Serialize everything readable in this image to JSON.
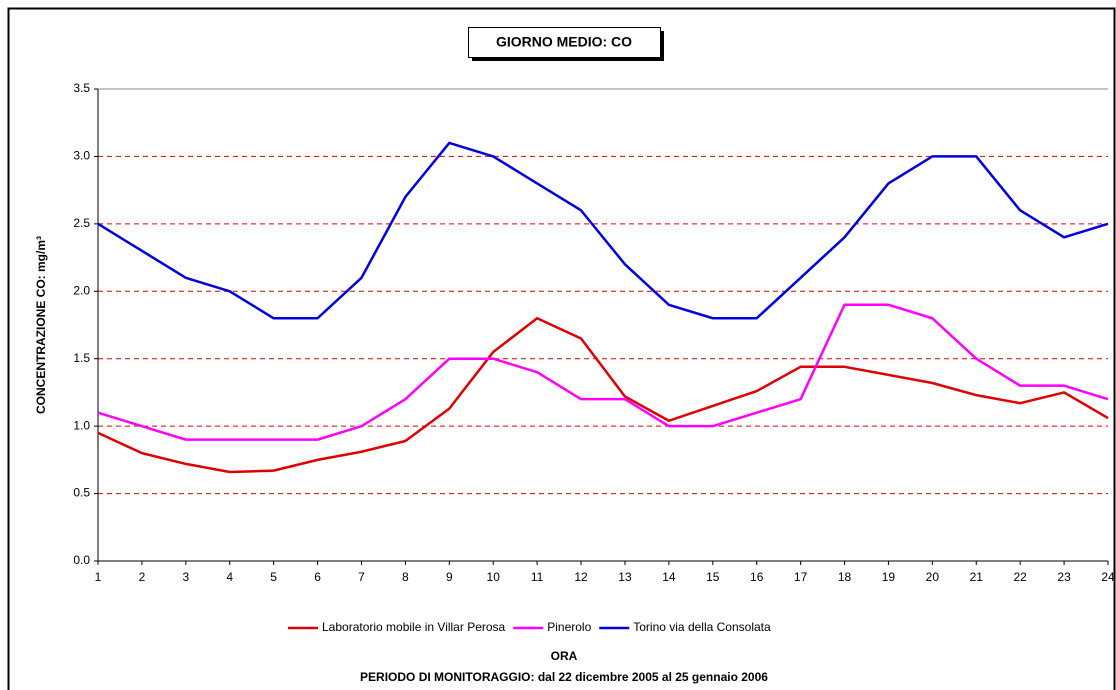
{
  "chart_data": {
    "type": "line",
    "title": "GIORNO MEDIO: CO",
    "x_label": "ORA",
    "subtitle": "PERIODO DI MONITORAGGIO: dal 22 dicembre 2005 al 25 gennaio 2006",
    "y_label": "CONCENTRAZIONE CO: mg/m³",
    "x": [
      1,
      2,
      3,
      4,
      5,
      6,
      7,
      8,
      9,
      10,
      11,
      12,
      13,
      14,
      15,
      16,
      17,
      18,
      19,
      20,
      21,
      22,
      23,
      24
    ],
    "xlim": [
      1,
      24
    ],
    "xticks": [
      1,
      2,
      3,
      4,
      5,
      6,
      7,
      8,
      9,
      10,
      11,
      12,
      13,
      14,
      15,
      16,
      17,
      18,
      19,
      20,
      21,
      22,
      23,
      24
    ],
    "ylim": [
      0,
      3.5
    ],
    "yticks": [
      {
        "value": 0,
        "label": "0.0"
      },
      {
        "value": 0.5,
        "label": "0.5"
      },
      {
        "value": 1,
        "label": "1.0"
      },
      {
        "value": 1.5,
        "label": "1.5"
      },
      {
        "value": 2,
        "label": "2.0"
      },
      {
        "value": 2.5,
        "label": "2.5"
      },
      {
        "value": 3,
        "label": "3.0"
      },
      {
        "value": 3.5,
        "label": "3.5"
      }
    ],
    "grid": true,
    "grid_color": "#e00000",
    "series": [
      {
        "name": "Laboratorio mobile in Villar Perosa",
        "color": "#e00000",
        "values": [
          0.95,
          0.8,
          0.72,
          0.66,
          0.67,
          0.75,
          0.81,
          0.89,
          1.13,
          1.55,
          1.8,
          1.65,
          1.22,
          1.04,
          1.15,
          1.26,
          1.44,
          1.44,
          1.38,
          1.32,
          1.23,
          1.17,
          1.25,
          1.06
        ]
      },
      {
        "name": "Pinerolo",
        "color": "#ff00ff",
        "values": [
          1.1,
          1.0,
          0.9,
          0.9,
          0.9,
          0.9,
          1.0,
          1.2,
          1.5,
          1.5,
          1.4,
          1.2,
          1.2,
          1.0,
          1.0,
          1.1,
          1.2,
          1.9,
          1.9,
          1.8,
          1.5,
          1.3,
          1.3,
          1.2
        ]
      },
      {
        "name": "Torino via della Consolata",
        "color": "#0000e0",
        "values": [
          2.5,
          2.3,
          2.1,
          2.0,
          1.8,
          1.8,
          2.1,
          2.7,
          3.1,
          3.0,
          2.8,
          2.6,
          2.2,
          1.9,
          1.8,
          1.8,
          2.1,
          2.4,
          2.8,
          3.0,
          3.0,
          2.6,
          2.4,
          2.5
        ]
      }
    ]
  }
}
